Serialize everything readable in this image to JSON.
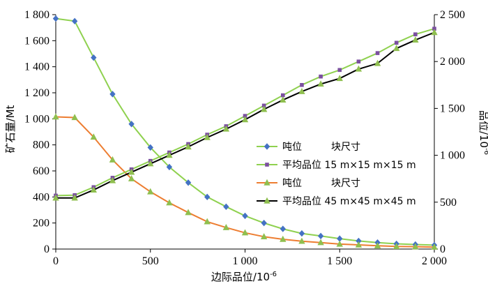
{
  "chart_data": {
    "type": "line",
    "title": "",
    "xlabel": "边际品位/10",
    "xlabel_sup": "-6",
    "ylabel_left": "矿石量/Mt",
    "ylabel_right": "品位/10",
    "ylabel_right_sup": "-6",
    "xlim": [
      0,
      2000
    ],
    "ylim_left": [
      0,
      1800
    ],
    "ylim_right": [
      0,
      2500
    ],
    "x_ticks": [
      0,
      500,
      1000,
      1500,
      2000
    ],
    "x_tick_labels": [
      "0",
      "500",
      "1 000",
      "1 500",
      "2 000"
    ],
    "y_left_ticks": [
      0,
      200,
      400,
      600,
      800,
      1000,
      1200,
      1400,
      1600,
      1800
    ],
    "y_left_tick_labels": [
      "0",
      "200",
      "400",
      "600",
      "800",
      "1 000",
      "1 200",
      "1 400",
      "1 600",
      "1 800"
    ],
    "y_right_ticks": [
      0,
      500,
      1000,
      1500,
      2000,
      2500
    ],
    "y_right_tick_labels": [
      "0",
      "500",
      "1 000",
      "1 500",
      "2 000",
      "2 500"
    ],
    "grid": false,
    "legend_position": "center-right",
    "x": [
      0,
      100,
      200,
      300,
      400,
      500,
      600,
      700,
      800,
      900,
      1000,
      1100,
      1200,
      1300,
      1400,
      1500,
      1600,
      1700,
      1800,
      1900,
      2000
    ],
    "series": [
      {
        "name": "吨位　　　块尺寸",
        "axis": "left",
        "line_color": "#8fd14f",
        "marker": "diamond",
        "marker_color": "#4472c4",
        "values": [
          1770,
          1750,
          1470,
          1190,
          960,
          780,
          630,
          510,
          400,
          325,
          255,
          200,
          155,
          120,
          100,
          80,
          62,
          50,
          40,
          35,
          30
        ]
      },
      {
        "name": "平均品位 15 m×15 m×15 m",
        "axis": "right",
        "line_color": "#8fd14f",
        "marker": "square",
        "marker_color": "#7b4fa0",
        "values": [
          570,
          575,
          660,
          760,
          850,
          940,
          1030,
          1120,
          1220,
          1310,
          1420,
          1530,
          1640,
          1750,
          1840,
          1910,
          2000,
          2090,
          2200,
          2290,
          2350
        ]
      },
      {
        "name": "吨位　　　块尺寸",
        "axis": "left",
        "line_color": "#ed7d31",
        "marker": "triangle",
        "marker_color": "#8fbf4f",
        "values": [
          1015,
          1010,
          860,
          685,
          540,
          440,
          355,
          280,
          210,
          165,
          125,
          95,
          75,
          60,
          50,
          38,
          32,
          25,
          20,
          18,
          15
        ]
      },
      {
        "name": "平均品位 45 m×45 m×45 m",
        "axis": "right",
        "line_color": "#000000",
        "marker": "triangle",
        "marker_color": "#8fbf4f",
        "values": [
          545,
          545,
          630,
          730,
          820,
          910,
          1000,
          1090,
          1190,
          1280,
          1380,
          1490,
          1590,
          1680,
          1760,
          1820,
          1920,
          1980,
          2140,
          2230,
          2310
        ]
      }
    ]
  }
}
